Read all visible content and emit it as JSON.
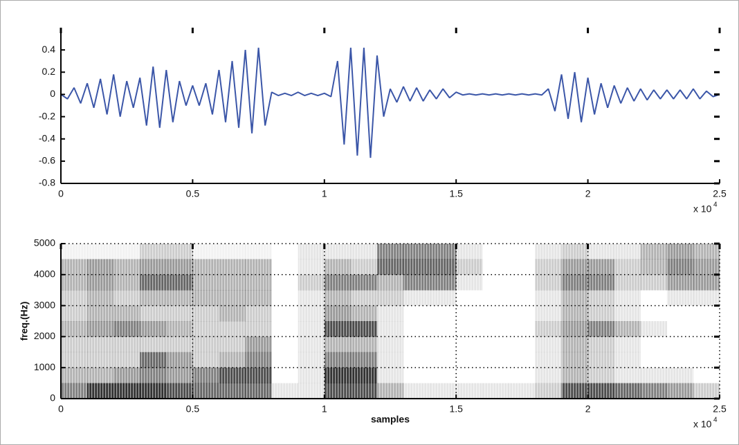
{
  "chart_data": [
    {
      "type": "line",
      "color": "#3b56a8",
      "x": [
        0,
        0.025,
        0.05,
        0.075,
        0.1,
        0.125,
        0.15,
        0.175,
        0.2,
        0.225,
        0.25,
        0.275,
        0.3,
        0.325,
        0.35,
        0.375,
        0.4,
        0.425,
        0.45,
        0.475,
        0.5,
        0.525,
        0.55,
        0.575,
        0.6,
        0.625,
        0.65,
        0.675,
        0.7,
        0.725,
        0.75,
        0.775,
        0.8,
        0.825,
        0.85,
        0.875,
        0.9,
        0.925,
        0.95,
        0.975,
        1,
        1.025,
        1.05,
        1.075,
        1.1,
        1.125,
        1.15,
        1.175,
        1.2,
        1.225,
        1.25,
        1.275,
        1.3,
        1.325,
        1.35,
        1.375,
        1.4,
        1.425,
        1.45,
        1.475,
        1.5,
        1.525,
        1.55,
        1.575,
        1.6,
        1.625,
        1.65,
        1.675,
        1.7,
        1.725,
        1.75,
        1.775,
        1.8,
        1.825,
        1.85,
        1.875,
        1.9,
        1.925,
        1.95,
        1.975,
        2,
        2.025,
        2.05,
        2.075,
        2.1,
        2.125,
        2.15,
        2.175,
        2.2,
        2.225,
        2.25,
        2.275,
        2.3,
        2.325,
        2.35,
        2.375,
        2.4,
        2.425,
        2.45,
        2.475,
        2.5
      ],
      "values": [
        0,
        -0.04,
        0.06,
        -0.08,
        0.1,
        -0.12,
        0.14,
        -0.18,
        0.18,
        -0.2,
        0.12,
        -0.12,
        0.15,
        -0.28,
        0.25,
        -0.3,
        0.22,
        -0.25,
        0.12,
        -0.1,
        0.08,
        -0.1,
        0.1,
        -0.18,
        0.22,
        -0.25,
        0.3,
        -0.3,
        0.4,
        -0.35,
        0.42,
        -0.28,
        0.02,
        -0.01,
        0.01,
        -0.01,
        0.02,
        -0.01,
        0.01,
        -0.01,
        0.01,
        -0.02,
        0.3,
        -0.45,
        0.42,
        -0.55,
        0.42,
        -0.57,
        0.35,
        -0.2,
        0.05,
        -0.07,
        0.07,
        -0.06,
        0.06,
        -0.06,
        0.04,
        -0.04,
        0.05,
        -0.03,
        0.02,
        -0.005,
        0.005,
        -0.005,
        0.005,
        -0.005,
        0.005,
        -0.005,
        0.005,
        -0.005,
        0.005,
        -0.005,
        0.005,
        -0.005,
        0.05,
        -0.15,
        0.18,
        -0.22,
        0.2,
        -0.25,
        0.15,
        -0.18,
        0.1,
        -0.12,
        0.08,
        -0.08,
        0.06,
        -0.06,
        0.05,
        -0.05,
        0.04,
        -0.04,
        0.04,
        -0.04,
        0.04,
        -0.04,
        0.05,
        -0.04,
        0.03,
        -0.02,
        0
      ],
      "xlim": [
        0,
        2.5
      ],
      "ylim": [
        -0.8,
        0.6
      ],
      "xticks": [
        0,
        0.5,
        1,
        1.5,
        2,
        2.5
      ],
      "yticks": [
        -0.8,
        -0.6,
        -0.4,
        -0.2,
        0,
        0.2,
        0.4
      ],
      "x_multiplier": "x 10",
      "x_multiplier_exponent": "4"
    },
    {
      "type": "heatmap",
      "xlabel": "samples",
      "ylabel": "freq.(Hz)",
      "color": "#000000",
      "grid": true,
      "x_bins": [
        0,
        0.1,
        0.2,
        0.3,
        0.4,
        0.5,
        0.6,
        0.7,
        0.8,
        0.9,
        1,
        1.1,
        1.2,
        1.3,
        1.4,
        1.5,
        1.6,
        1.7,
        1.8,
        1.9,
        2,
        2.1,
        2.2,
        2.3,
        2.4,
        2.5
      ],
      "y_bins": [
        0,
        500,
        1000,
        1500,
        2000,
        2500,
        3000,
        3500,
        4000,
        4500,
        5000
      ],
      "values": [
        [
          0.5,
          0.3,
          0.2,
          0.2,
          0.3,
          0.2,
          0.2,
          0.3,
          0.3,
          0.05
        ],
        [
          0.8,
          0.3,
          0.2,
          0.2,
          0.4,
          0.3,
          0.3,
          0.4,
          0.4,
          0.05
        ],
        [
          0.8,
          0.4,
          0.2,
          0.2,
          0.5,
          0.3,
          0.2,
          0.3,
          0.3,
          0.05
        ],
        [
          0.8,
          0.5,
          0.6,
          0.2,
          0.4,
          0.2,
          0.3,
          0.6,
          0.4,
          0.2
        ],
        [
          0.7,
          0.4,
          0.4,
          0.2,
          0.3,
          0.2,
          0.3,
          0.6,
          0.4,
          0.2
        ],
        [
          0.6,
          0.5,
          0.2,
          0.2,
          0.2,
          0.2,
          0.3,
          0.3,
          0.3,
          0.05
        ],
        [
          0.6,
          0.7,
          0.3,
          0.2,
          0.2,
          0.3,
          0.3,
          0.3,
          0.3,
          0.05
        ],
        [
          0.6,
          0.7,
          0.5,
          0.4,
          0.2,
          0.2,
          0.3,
          0.3,
          0.3,
          0.05
        ],
        [
          0.1,
          0,
          0,
          0,
          0,
          0,
          0,
          0,
          0,
          0
        ],
        [
          0.1,
          0.1,
          0.1,
          0.1,
          0.1,
          0.1,
          0.1,
          0.2,
          0.1,
          0.1
        ],
        [
          0.7,
          0.8,
          0.5,
          0.3,
          0.7,
          0.4,
          0.3,
          0.5,
          0.3,
          0.1
        ],
        [
          0.7,
          0.8,
          0.5,
          0.3,
          0.7,
          0.3,
          0.2,
          0.5,
          0.2,
          0.1
        ],
        [
          0.3,
          0.1,
          0.1,
          0.1,
          0.1,
          0.1,
          0.2,
          0.3,
          0.6,
          0.5
        ],
        [
          0.1,
          0,
          0,
          0,
          0,
          0,
          0.1,
          0.5,
          0.6,
          0.5
        ],
        [
          0.1,
          0,
          0,
          0,
          0,
          0,
          0.1,
          0.5,
          0.6,
          0.5
        ],
        [
          0.1,
          0,
          0,
          0,
          0,
          0,
          0,
          0.1,
          0.2,
          0.1
        ],
        [
          0.1,
          0,
          0,
          0,
          0,
          0,
          0,
          0,
          0,
          0
        ],
        [
          0.1,
          0,
          0,
          0,
          0,
          0,
          0,
          0,
          0,
          0
        ],
        [
          0.2,
          0.1,
          0.1,
          0.1,
          0.2,
          0.1,
          0.1,
          0.2,
          0.2,
          0.1
        ],
        [
          0.7,
          0.3,
          0.3,
          0.3,
          0.4,
          0.3,
          0.3,
          0.5,
          0.4,
          0.2
        ],
        [
          0.7,
          0.2,
          0.2,
          0.2,
          0.5,
          0.2,
          0.2,
          0.5,
          0.4,
          0.1
        ],
        [
          0.6,
          0.1,
          0.1,
          0.1,
          0.3,
          0.1,
          0.1,
          0.2,
          0.2,
          0.1
        ],
        [
          0.5,
          0.1,
          0,
          0,
          0.1,
          0,
          0,
          0.2,
          0.3,
          0.3
        ],
        [
          0.4,
          0.1,
          0,
          0,
          0,
          0,
          0.1,
          0.4,
          0.5,
          0.4
        ],
        [
          0.2,
          0,
          0,
          0,
          0,
          0,
          0.1,
          0.4,
          0.4,
          0.3
        ]
      ],
      "xlim": [
        0,
        2.5
      ],
      "ylim": [
        0,
        5000
      ],
      "xticks": [
        0,
        0.5,
        1,
        1.5,
        2,
        2.5
      ],
      "yticks": [
        0,
        1000,
        2000,
        3000,
        4000,
        5000
      ],
      "x_multiplier": "x 10",
      "x_multiplier_exponent": "4"
    }
  ]
}
